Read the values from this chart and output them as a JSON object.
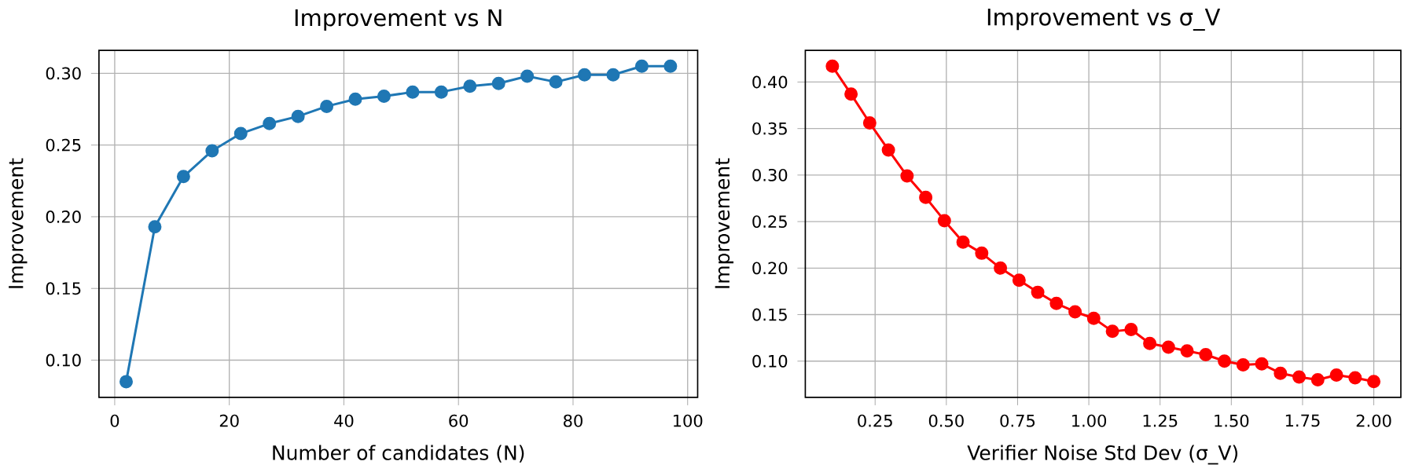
{
  "chart_data": [
    {
      "type": "line",
      "title": "Improvement vs N",
      "xlabel": "Number of candidates (N)",
      "ylabel": "Improvement",
      "marker": "circle",
      "grid": true,
      "x": [
        2,
        7,
        12,
        17,
        22,
        27,
        32,
        37,
        42,
        47,
        52,
        57,
        62,
        67,
        72,
        77,
        82,
        87,
        92,
        97
      ],
      "series": [
        {
          "color": "#1f77b4",
          "values": [
            0.085,
            0.193,
            0.228,
            0.246,
            0.258,
            0.265,
            0.27,
            0.277,
            0.282,
            0.284,
            0.287,
            0.287,
            0.291,
            0.293,
            0.298,
            0.294,
            0.299,
            0.299,
            0.305,
            0.305
          ]
        }
      ],
      "xlim": [
        -2.75,
        101.75
      ],
      "ylim": [
        0.074,
        0.316
      ],
      "xticks": [
        0,
        20,
        40,
        60,
        80,
        100
      ],
      "yticks": [
        {
          "value": 0.1,
          "label": "0.10"
        },
        {
          "value": 0.15,
          "label": "0.15"
        },
        {
          "value": 0.2,
          "label": "0.20"
        },
        {
          "value": 0.25,
          "label": "0.25"
        },
        {
          "value": 0.3,
          "label": "0.30"
        }
      ]
    },
    {
      "type": "line",
      "title": "Improvement vs σ_V",
      "xlabel": "Verifier Noise Std Dev (σ_V)",
      "ylabel": "Improvement",
      "marker": "circle",
      "grid": true,
      "x": [
        0.1,
        0.1655,
        0.231,
        0.2966,
        0.3621,
        0.4276,
        0.4931,
        0.5586,
        0.6241,
        0.6897,
        0.7552,
        0.8207,
        0.8862,
        0.9517,
        1.0172,
        1.0828,
        1.1483,
        1.2138,
        1.2793,
        1.3448,
        1.4103,
        1.4759,
        1.5414,
        1.6069,
        1.6724,
        1.7379,
        1.8034,
        1.869,
        1.9345,
        2.0
      ],
      "series": [
        {
          "color": "#ff0000",
          "values": [
            0.417,
            0.387,
            0.356,
            0.327,
            0.299,
            0.276,
            0.251,
            0.228,
            0.216,
            0.2,
            0.187,
            0.174,
            0.162,
            0.153,
            0.146,
            0.132,
            0.134,
            0.119,
            0.115,
            0.111,
            0.107,
            0.1,
            0.096,
            0.097,
            0.087,
            0.083,
            0.08,
            0.085,
            0.082,
            0.078
          ]
        }
      ],
      "xlim": [
        0.005,
        2.095
      ],
      "ylim": [
        0.061,
        0.434
      ],
      "xticks": [
        0.25,
        {
          "value": 0.5,
          "label": "0.50"
        },
        0.75,
        {
          "value": 1.0,
          "label": "1.00"
        },
        1.25,
        {
          "value": 1.5,
          "label": "1.50"
        },
        1.75,
        {
          "value": 2.0,
          "label": "2.00"
        }
      ],
      "yticks": [
        {
          "value": 0.1,
          "label": "0.10"
        },
        {
          "value": 0.15,
          "label": "0.15"
        },
        {
          "value": 0.2,
          "label": "0.20"
        },
        {
          "value": 0.25,
          "label": "0.25"
        },
        {
          "value": 0.3,
          "label": "0.30"
        },
        {
          "value": 0.35,
          "label": "0.35"
        },
        {
          "value": 0.4,
          "label": "0.40"
        }
      ]
    }
  ]
}
